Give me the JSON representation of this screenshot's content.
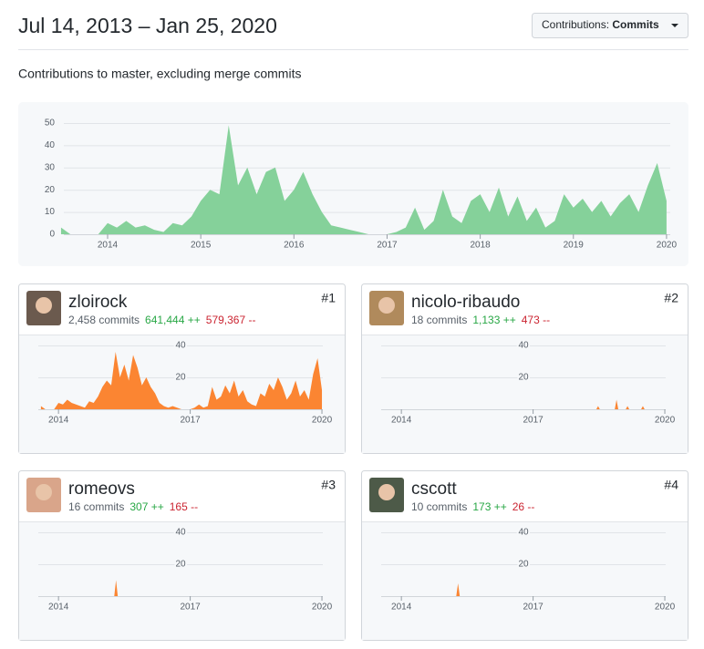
{
  "header": {
    "title": "Jul 14, 2013 – Jan 25, 2020",
    "button_label": "Contributions:",
    "button_value": "Commits"
  },
  "subtitle": "Contributions to master, excluding merge commits",
  "contributors": [
    {
      "name": "zloirock",
      "commits": "2,458 commits",
      "additions": "641,444 ++",
      "deletions": "579,367 --",
      "rank": "#1"
    },
    {
      "name": "nicolo-ribaudo",
      "commits": "18 commits",
      "additions": "1,133 ++",
      "deletions": "473 --",
      "rank": "#2"
    },
    {
      "name": "romeovs",
      "commits": "16 commits",
      "additions": "307 ++",
      "deletions": "165 --",
      "rank": "#3"
    },
    {
      "name": "cscott",
      "commits": "10 commits",
      "additions": "173 ++",
      "deletions": "26 --",
      "rank": "#4"
    }
  ],
  "chart_data": [
    {
      "type": "area",
      "color": "#85d19a",
      "x": [
        2013.5,
        2013.6,
        2013.7,
        2013.8,
        2013.9,
        2014.0,
        2014.1,
        2014.2,
        2014.3,
        2014.4,
        2014.5,
        2014.6,
        2014.7,
        2014.8,
        2014.9,
        2015.0,
        2015.1,
        2015.2,
        2015.3,
        2015.4,
        2015.5,
        2015.6,
        2015.7,
        2015.8,
        2015.9,
        2016.0,
        2016.1,
        2016.2,
        2016.3,
        2016.4,
        2016.5,
        2016.6,
        2016.7,
        2016.8,
        2016.9,
        2017.0,
        2017.1,
        2017.2,
        2017.3,
        2017.4,
        2017.5,
        2017.6,
        2017.7,
        2017.8,
        2017.9,
        2018.0,
        2018.1,
        2018.2,
        2018.3,
        2018.4,
        2018.5,
        2018.6,
        2018.7,
        2018.8,
        2018.9,
        2019.0,
        2019.1,
        2019.2,
        2019.3,
        2019.4,
        2019.5,
        2019.6,
        2019.7,
        2019.8,
        2019.9,
        2020.0
      ],
      "values": [
        3,
        0,
        0,
        0,
        0,
        5,
        3,
        6,
        3,
        4,
        2,
        1,
        5,
        4,
        8,
        15,
        20,
        18,
        49,
        22,
        30,
        18,
        28,
        30,
        15,
        20,
        28,
        18,
        10,
        4,
        3,
        2,
        1,
        0,
        0,
        0,
        1,
        3,
        12,
        2,
        6,
        20,
        8,
        5,
        15,
        18,
        10,
        21,
        8,
        17,
        6,
        12,
        3,
        6,
        18,
        12,
        16,
        10,
        15,
        8,
        14,
        18,
        10,
        22,
        32,
        15
      ],
      "xlim": [
        2013.53,
        2020.04
      ],
      "ylim": [
        0,
        50
      ],
      "xticks": [
        2014,
        2015,
        2016,
        2017,
        2018,
        2019,
        2020
      ],
      "yticks": [
        0,
        10,
        20,
        30,
        40,
        50
      ],
      "grid": true
    },
    {
      "type": "area",
      "color": "#fb8532",
      "x": [
        2013.6,
        2013.7,
        2013.8,
        2013.9,
        2014.0,
        2014.1,
        2014.2,
        2014.3,
        2014.4,
        2014.5,
        2014.6,
        2014.7,
        2014.8,
        2014.9,
        2015.0,
        2015.1,
        2015.2,
        2015.3,
        2015.4,
        2015.5,
        2015.6,
        2015.7,
        2015.8,
        2015.9,
        2016.0,
        2016.1,
        2016.2,
        2016.3,
        2016.4,
        2016.5,
        2016.6,
        2016.7,
        2016.8,
        2016.9,
        2017.0,
        2017.1,
        2017.2,
        2017.3,
        2017.4,
        2017.5,
        2017.6,
        2017.7,
        2017.8,
        2017.9,
        2018.0,
        2018.1,
        2018.2,
        2018.3,
        2018.4,
        2018.5,
        2018.6,
        2018.7,
        2018.8,
        2018.9,
        2019.0,
        2019.1,
        2019.2,
        2019.3,
        2019.4,
        2019.5,
        2019.6,
        2019.7,
        2019.8,
        2019.9,
        2020.0
      ],
      "values": [
        2,
        0,
        0,
        0,
        4,
        3,
        6,
        4,
        3,
        2,
        1,
        5,
        4,
        8,
        14,
        18,
        15,
        36,
        20,
        28,
        18,
        34,
        26,
        15,
        20,
        14,
        10,
        4,
        2,
        1,
        2,
        1,
        0,
        0,
        0,
        1,
        3,
        1,
        2,
        14,
        6,
        8,
        15,
        10,
        18,
        8,
        12,
        5,
        3,
        2,
        10,
        8,
        16,
        12,
        20,
        14,
        6,
        10,
        18,
        8,
        12,
        6,
        22,
        32,
        12
      ],
      "xlim": [
        2013.54,
        2020.02
      ],
      "ylim": [
        0,
        44
      ],
      "xticks": [
        2014,
        2017,
        2020
      ],
      "yticks": [
        20,
        40
      ],
      "grid": true
    },
    {
      "type": "area",
      "color": "#fb8532",
      "x": [
        2013.54,
        2018.44,
        2018.48,
        2018.52,
        2018.86,
        2018.9,
        2018.94,
        2019.11,
        2019.15,
        2019.19,
        2019.46,
        2019.5,
        2019.54,
        2020.02
      ],
      "values": [
        0,
        0,
        2,
        0,
        0,
        6,
        0,
        0,
        2,
        0,
        0,
        2,
        0,
        0
      ],
      "xlim": [
        2013.54,
        2020.02
      ],
      "ylim": [
        0,
        44
      ],
      "xticks": [
        2014,
        2017,
        2020
      ],
      "yticks": [
        20,
        40
      ],
      "grid": true
    },
    {
      "type": "area",
      "color": "#fb8532",
      "x": [
        2013.54,
        2015.27,
        2015.31,
        2015.35,
        2020.02
      ],
      "values": [
        0,
        0,
        10,
        0,
        0
      ],
      "xlim": [
        2013.54,
        2020.02
      ],
      "ylim": [
        0,
        44
      ],
      "xticks": [
        2014,
        2017,
        2020
      ],
      "yticks": [
        20,
        40
      ],
      "grid": true
    },
    {
      "type": "area",
      "color": "#fb8532",
      "x": [
        2013.54,
        2015.25,
        2015.29,
        2015.33,
        2020.02
      ],
      "values": [
        0,
        0,
        8,
        0,
        0
      ],
      "xlim": [
        2013.54,
        2020.02
      ],
      "ylim": [
        0,
        44
      ],
      "xticks": [
        2014,
        2017,
        2020
      ],
      "yticks": [
        20,
        40
      ],
      "grid": true
    }
  ]
}
